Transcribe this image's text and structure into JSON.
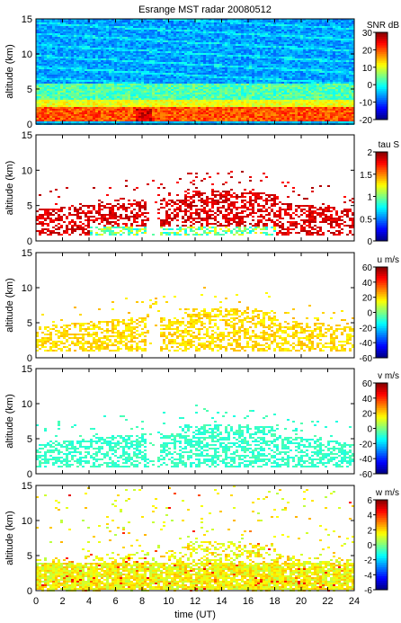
{
  "chart_data": {
    "title": "Esrange MST radar 20080512",
    "type": "heatmap",
    "x_label": "time (UT)",
    "x_range": [
      0,
      24
    ],
    "x_ticks": [
      0,
      2,
      4,
      6,
      8,
      10,
      12,
      14,
      16,
      18,
      20,
      22,
      24
    ],
    "panels": [
      {
        "id": "snr",
        "y_label": "altitude (km)",
        "y_range": [
          0,
          15
        ],
        "y_ticks": [
          0,
          5,
          10,
          15
        ],
        "colorbar_label": "SNR dB",
        "colorbar_range": [
          -20,
          30
        ],
        "colorbar_ticks": [
          30,
          20,
          10,
          0,
          -10,
          -20
        ]
      },
      {
        "id": "tau",
        "y_label": "altitude (km)",
        "y_range": [
          0,
          15
        ],
        "y_ticks": [
          0,
          5,
          10,
          15
        ],
        "colorbar_label": "tau S",
        "colorbar_range": [
          0,
          2
        ],
        "colorbar_ticks": [
          2,
          1.5,
          1,
          0.5,
          0
        ]
      },
      {
        "id": "u",
        "y_label": "altitude (km)",
        "y_range": [
          0,
          15
        ],
        "y_ticks": [
          0,
          5,
          10,
          15
        ],
        "colorbar_label": "u m/s",
        "colorbar_range": [
          -60,
          60
        ],
        "colorbar_ticks": [
          60,
          40,
          20,
          0,
          -20,
          -40,
          -60
        ]
      },
      {
        "id": "v",
        "y_label": "altitude (km)",
        "y_range": [
          0,
          15
        ],
        "y_ticks": [
          0,
          5,
          10,
          15
        ],
        "colorbar_label": "v m/s",
        "colorbar_range": [
          -60,
          60
        ],
        "colorbar_ticks": [
          60,
          40,
          20,
          0,
          -20,
          -40,
          -60
        ]
      },
      {
        "id": "w",
        "y_label": "altitude (km)",
        "y_range": [
          0,
          15
        ],
        "y_ticks": [
          0,
          5,
          10,
          15
        ],
        "colorbar_label": "w m/s",
        "colorbar_range": [
          -6,
          6
        ],
        "colorbar_ticks": [
          6,
          4,
          2,
          0,
          -2,
          -4,
          -6
        ]
      }
    ]
  }
}
